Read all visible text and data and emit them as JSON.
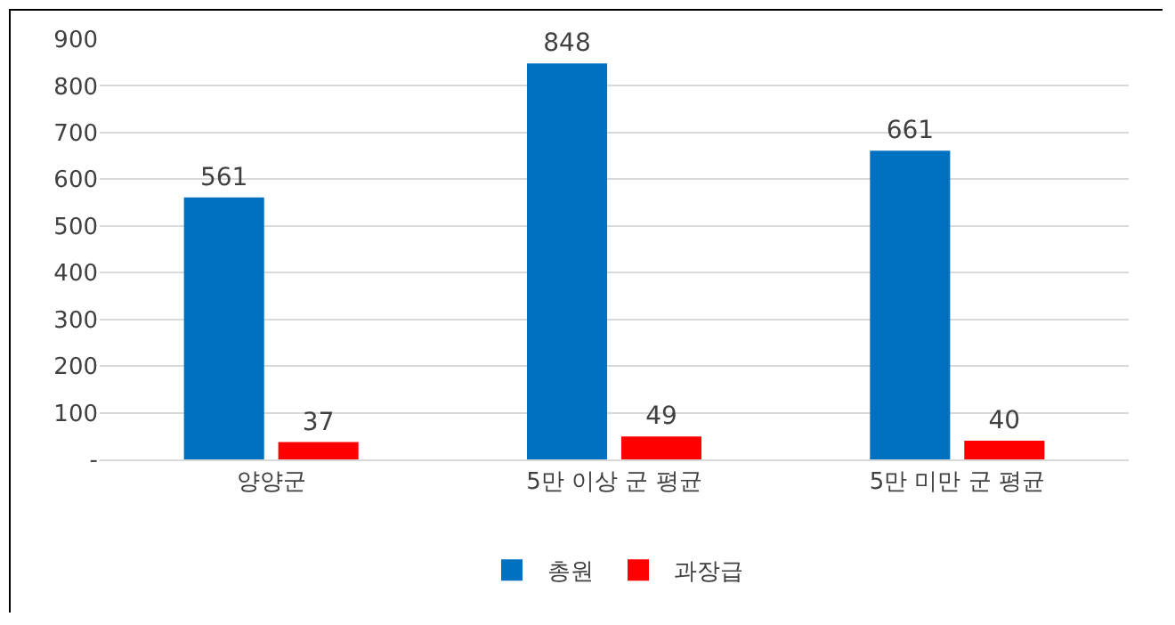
{
  "chart_data": {
    "type": "bar",
    "categories": [
      "양양군",
      "5만 이상 군 평균",
      "5만 미만 군 평균"
    ],
    "series": [
      {
        "name": "총원",
        "color": "#0070c0",
        "values": [
          561,
          848,
          661
        ]
      },
      {
        "name": "과장급",
        "color": "#ff0000",
        "values": [
          37,
          49,
          40
        ]
      }
    ],
    "ylim": [
      0,
      900
    ],
    "yticks": [
      {
        "value": 0,
        "label": "-"
      },
      100,
      200,
      300,
      400,
      500,
      600,
      700,
      800,
      900
    ],
    "grid": "y",
    "legend": "bottom",
    "data_labels": true
  }
}
